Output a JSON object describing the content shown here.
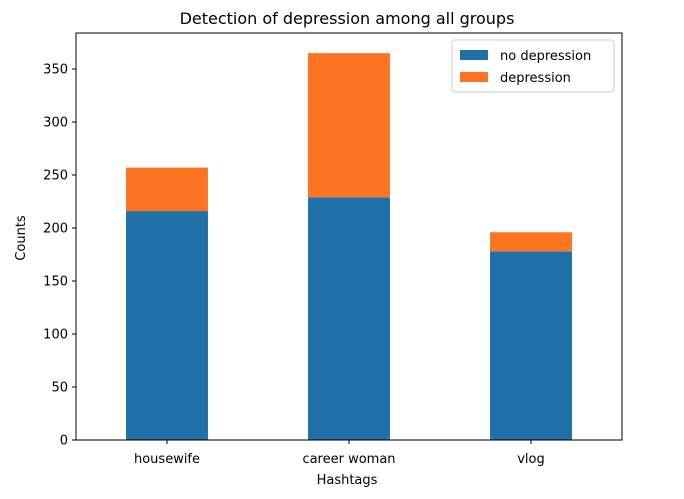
{
  "chart_data": {
    "type": "bar",
    "stacked": true,
    "title": "Detection of depression among all groups",
    "xlabel": "Hashtags",
    "ylabel": "Counts",
    "categories": [
      "housewife",
      "career woman",
      "vlog"
    ],
    "series": [
      {
        "name": "no depression",
        "values": [
          216,
          229,
          178
        ],
        "color": "#1f6fa8"
      },
      {
        "name": "depression",
        "values": [
          41,
          136,
          18
        ],
        "color": "#ff7423"
      }
    ],
    "ylim": [
      0,
      384
    ],
    "yticks": [
      0,
      50,
      100,
      150,
      200,
      250,
      300,
      350
    ],
    "grid": false,
    "legend": "top-right"
  }
}
